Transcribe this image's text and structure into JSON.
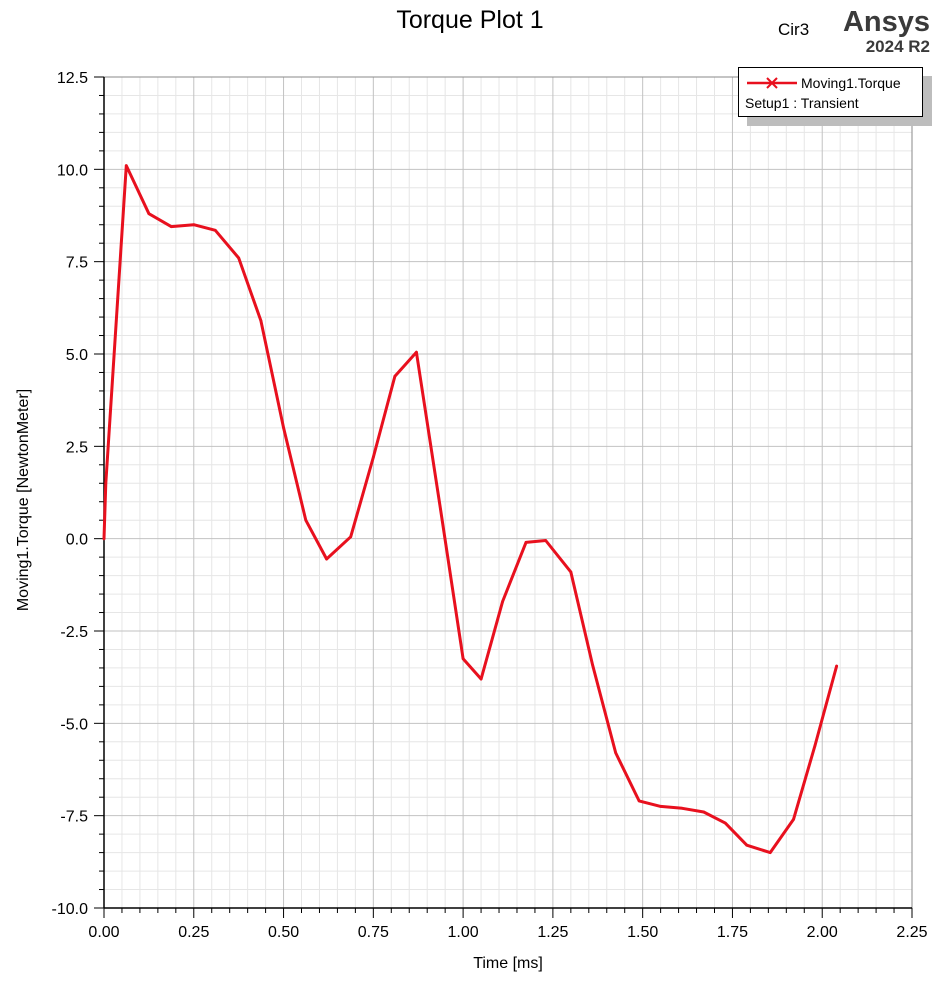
{
  "header": {
    "title": "Torque Plot 1",
    "design_name": "Cir3",
    "brand": "Ansys",
    "version": "2024 R2"
  },
  "legend": {
    "series_name": "Moving1.Torque",
    "setup": "Setup1 : Transient"
  },
  "colors": {
    "series": "#e8101e",
    "grid_major": "#c2c2c2",
    "grid_minor": "#e6e6e6",
    "legend_shadow": "#bdbdbd"
  },
  "chart_data": {
    "type": "line",
    "title": "Torque Plot 1",
    "xlabel": "Time [ms]",
    "ylabel": "Moving1.Torque [NewtonMeter]",
    "xlim": [
      0,
      2.25
    ],
    "ylim": [
      -10,
      12.5
    ],
    "x_ticks": [
      0,
      0.25,
      0.5,
      0.75,
      1.0,
      1.25,
      1.5,
      1.75,
      2.0,
      2.25
    ],
    "x_tick_labels": [
      "0.00",
      "0.25",
      "0.50",
      "0.75",
      "1.00",
      "1.25",
      "1.50",
      "1.75",
      "2.00",
      "2.25"
    ],
    "y_ticks": [
      -10,
      -7.5,
      -5,
      -2.5,
      0,
      2.5,
      5,
      7.5,
      10,
      12.5
    ],
    "y_tick_labels": [
      "-10.0",
      "-7.5",
      "-5.0",
      "-2.5",
      "0.0",
      "2.5",
      "5.0",
      "7.5",
      "10.0",
      "12.5"
    ],
    "grid": true,
    "legend_position": "top-right",
    "series": [
      {
        "name": "Moving1.Torque",
        "x": [
          0,
          0.005,
          0.062,
          0.125,
          0.187,
          0.25,
          0.31,
          0.375,
          0.437,
          0.5,
          0.562,
          0.62,
          0.687,
          0.75,
          0.81,
          0.87,
          0.937,
          1.0,
          1.05,
          1.11,
          1.175,
          1.23,
          1.3,
          1.36,
          1.425,
          1.49,
          1.55,
          1.61,
          1.67,
          1.73,
          1.79,
          1.855,
          1.92,
          1.98,
          2.04
        ],
        "y": [
          0,
          1.5,
          10.1,
          8.8,
          8.45,
          8.5,
          8.35,
          7.6,
          5.9,
          3.0,
          0.5,
          -0.55,
          0.05,
          2.2,
          4.4,
          5.05,
          0.8,
          -3.25,
          -3.8,
          -1.7,
          -0.1,
          -0.05,
          -0.9,
          -3.4,
          -5.8,
          -7.1,
          -7.25,
          -7.3,
          -7.4,
          -7.7,
          -8.3,
          -8.5,
          -7.6,
          -5.6,
          -3.45
        ]
      }
    ]
  }
}
